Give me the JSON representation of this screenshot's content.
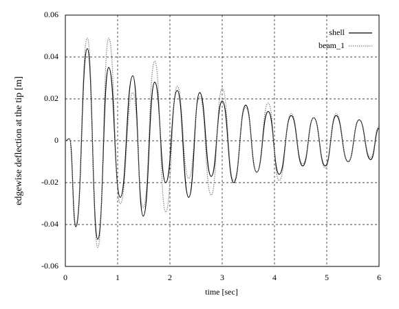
{
  "chart_data": {
    "type": "line",
    "x_label": "time [sec]",
    "y_label": "edgewise deflection at the tip [m]",
    "x": [
      0,
      0.08,
      0.2,
      0.42,
      0.62,
      0.83,
      1.05,
      1.29,
      1.49,
      1.71,
      1.92,
      2.14,
      2.36,
      2.57,
      2.79,
      3.0,
      3.22,
      3.45,
      3.66,
      3.88,
      4.09,
      4.32,
      4.54,
      4.75,
      4.97,
      5.18,
      5.41,
      5.62,
      5.84,
      6.0
    ],
    "series": [
      {
        "name": "shell",
        "color": "#000000",
        "dash": "solid",
        "values": [
          0,
          0.001,
          -0.041,
          0.044,
          -0.047,
          0.035,
          -0.027,
          0.031,
          -0.036,
          0.028,
          -0.02,
          0.024,
          -0.027,
          0.023,
          -0.017,
          0.019,
          -0.02,
          0.017,
          -0.015,
          0.014,
          -0.016,
          0.012,
          -0.012,
          0.011,
          -0.012,
          0.012,
          -0.01,
          0.01,
          -0.009,
          0.006
        ]
      },
      {
        "name": "beam_1",
        "color": "#808080",
        "dash": "dotted",
        "values": [
          0,
          0.001,
          -0.04,
          0.049,
          -0.051,
          0.049,
          -0.03,
          0.023,
          -0.032,
          0.038,
          -0.034,
          0.026,
          -0.018,
          0.021,
          -0.026,
          0.025,
          -0.019,
          0.016,
          -0.015,
          0.018,
          -0.019,
          0.013,
          -0.011,
          0.011,
          -0.013,
          0.013,
          -0.01,
          0.01,
          -0.008,
          0.007
        ]
      }
    ],
    "xlim": [
      0,
      6
    ],
    "xticks": [
      0,
      1,
      2,
      3,
      4,
      5,
      6
    ],
    "ylim": [
      -0.06,
      0.06
    ],
    "yticks": [
      -0.06,
      -0.04,
      -0.02,
      0,
      0.02,
      0.04,
      0.06
    ],
    "grid": true,
    "legend": "top-right"
  }
}
